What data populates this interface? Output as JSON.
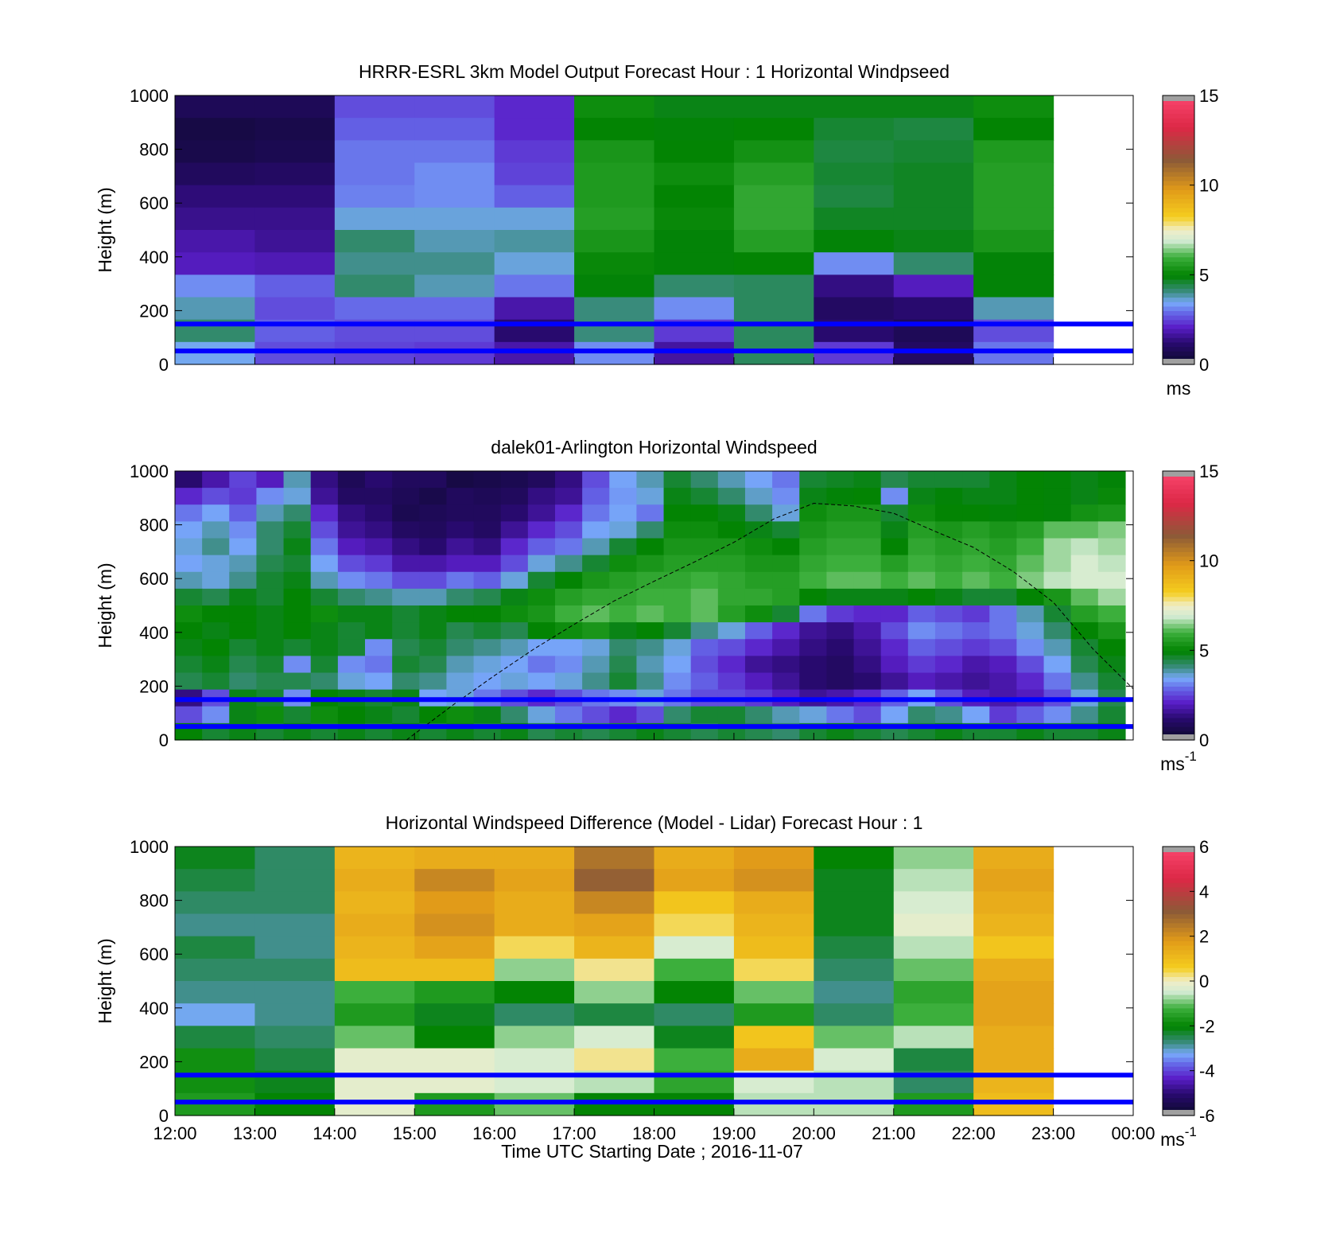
{
  "figure": {
    "xlabel": "Time UTC  Starting Date ; 2016-11-07",
    "x_ticks": [
      "12:00",
      "13:00",
      "14:00",
      "15:00",
      "16:00",
      "17:00",
      "18:00",
      "19:00",
      "20:00",
      "21:00",
      "22:00",
      "23:00",
      "00:00"
    ]
  },
  "colors": {
    "guide_lines": "#0000ff",
    "sun_curve": "#000000",
    "missing": "#ffffff",
    "flag": "#a0a0a0"
  },
  "chart_data": [
    {
      "type": "heatmap",
      "title": "HRRR-ESRL 3km Model Output   Forecast Hour : 1 Horizontal Windpseed",
      "ylabel": "Height (m)",
      "ylim": [
        0,
        1000
      ],
      "y_ticks": [
        "0",
        "200",
        "400",
        "600",
        "800",
        "1000"
      ],
      "x_range_hours": [
        12,
        24
      ],
      "colorbar": {
        "min": 0,
        "max": 15,
        "ticks": [
          "0",
          "5",
          "10",
          "15"
        ],
        "unit": "ms",
        "unit_sup": ""
      },
      "guide_lines_m": [
        150,
        50
      ],
      "values": [
        [
          0.8,
          0.8,
          2.6,
          2.6,
          2.2,
          5.2,
          4.8,
          4.8,
          4.8,
          4.8,
          5.2
        ],
        [
          0.5,
          0.6,
          2.8,
          2.8,
          2.2,
          5.0,
          4.9,
          5.0,
          4.6,
          4.5,
          5.0
        ],
        [
          0.6,
          0.7,
          3.0,
          3.0,
          2.4,
          5.4,
          5.0,
          5.3,
          4.5,
          4.6,
          5.5
        ],
        [
          0.9,
          1.0,
          3.0,
          3.2,
          2.5,
          5.5,
          5.2,
          5.6,
          4.6,
          4.7,
          5.6
        ],
        [
          1.3,
          1.3,
          3.1,
          3.2,
          2.8,
          5.5,
          5.0,
          5.8,
          4.5,
          4.7,
          5.6
        ],
        [
          1.5,
          1.5,
          3.6,
          3.6,
          3.6,
          5.6,
          5.1,
          5.8,
          4.7,
          4.7,
          5.6
        ],
        [
          1.8,
          1.6,
          4.2,
          3.8,
          3.9,
          5.4,
          4.9,
          5.6,
          4.9,
          4.8,
          5.4
        ],
        [
          2.0,
          1.9,
          4.0,
          4.0,
          3.6,
          5.1,
          4.9,
          5.0,
          3.2,
          4.2,
          4.9
        ],
        [
          3.2,
          2.8,
          4.2,
          3.8,
          3.0,
          4.9,
          4.2,
          4.3,
          1.4,
          2.0,
          4.9
        ],
        [
          3.8,
          2.6,
          2.9,
          2.9,
          1.8,
          4.1,
          3.2,
          4.3,
          1.0,
          1.2,
          3.8
        ],
        [
          4.2,
          2.8,
          2.6,
          2.6,
          1.2,
          4.1,
          2.4,
          4.3,
          1.2,
          0.8,
          2.6
        ],
        [
          3.5,
          2.6,
          2.5,
          2.4,
          1.8,
          3.2,
          1.7,
          4.3,
          2.4,
          1.0,
          3.0
        ]
      ]
    },
    {
      "type": "heatmap",
      "title": "dalek01-Arlington  Horizontal Windspeed",
      "ylabel": "Height (m)",
      "ylim": [
        0,
        1000
      ],
      "y_ticks": [
        "0",
        "200",
        "400",
        "600",
        "800",
        "1000"
      ],
      "x_range_hours": [
        12,
        24
      ],
      "colorbar": {
        "min": 0,
        "max": 15,
        "ticks": [
          "0",
          "5",
          "10",
          "15"
        ],
        "unit": "ms",
        "unit_sup": "-1"
      },
      "guide_lines_m": [
        150,
        50
      ],
      "sun_elevation_curve": {
        "hours": [
          14.9,
          15.5,
          16.0,
          16.5,
          17.0,
          17.5,
          18.0,
          18.5,
          19.0,
          19.5,
          20.0,
          20.5,
          21.0,
          21.5,
          22.0,
          22.5,
          23.0,
          23.5,
          24.0
        ],
        "height_m": [
          0,
          134,
          239,
          339,
          430,
          517,
          590,
          661,
          735,
          822,
          880,
          870,
          843,
          778,
          716,
          626,
          512,
          337,
          190
        ]
      },
      "values": [
        [
          1.2,
          1.8,
          2.5,
          2.0,
          3.8,
          1.4,
          0.8,
          1.2,
          0.9,
          0.9,
          0.5,
          0.6,
          0.7,
          0.9,
          1.4,
          2.6,
          3.4,
          3.8,
          4.6,
          4.2,
          3.8,
          3.4,
          3.0,
          4.6,
          4.7,
          4.8,
          4.4,
          4.6,
          4.6,
          4.6,
          4.8,
          5.0,
          4.9,
          4.8,
          4.9
        ],
        [
          2.2,
          2.6,
          2.4,
          3.2,
          3.6,
          1.6,
          1.0,
          1.0,
          0.8,
          0.6,
          0.9,
          0.8,
          0.9,
          1.4,
          1.6,
          2.8,
          3.3,
          3.6,
          4.8,
          4.6,
          4.2,
          3.7,
          3.2,
          4.8,
          4.9,
          5.0,
          3.2,
          4.8,
          4.9,
          4.8,
          4.8,
          5.0,
          4.9,
          4.8,
          5.1
        ],
        [
          3.0,
          3.4,
          2.8,
          3.8,
          4.2,
          2.2,
          1.4,
          1.2,
          0.7,
          0.8,
          0.9,
          0.9,
          1.2,
          1.6,
          2.2,
          3.0,
          3.4,
          3.0,
          5.0,
          5.0,
          4.8,
          4.2,
          3.6,
          5.2,
          5.4,
          5.4,
          4.6,
          5.2,
          5.0,
          5.0,
          4.9,
          5.0,
          4.9,
          5.3,
          5.4
        ],
        [
          3.4,
          3.8,
          3.2,
          4.2,
          4.6,
          2.6,
          1.6,
          1.4,
          1.0,
          0.9,
          1.2,
          1.0,
          1.6,
          2.2,
          2.6,
          3.4,
          3.6,
          4.2,
          5.2,
          5.2,
          5.0,
          4.8,
          4.6,
          5.4,
          5.6,
          5.6,
          4.8,
          5.6,
          5.4,
          5.6,
          5.4,
          5.6,
          6.2,
          6.2,
          6.4
        ],
        [
          3.6,
          4.0,
          3.4,
          4.2,
          4.8,
          3.0,
          2.0,
          1.8,
          1.4,
          1.2,
          1.6,
          1.4,
          2.2,
          2.8,
          3.0,
          3.8,
          4.6,
          5.0,
          5.4,
          5.4,
          5.4,
          5.2,
          5.0,
          5.6,
          5.8,
          5.8,
          5.0,
          5.8,
          5.6,
          5.8,
          5.6,
          6.0,
          6.6,
          6.8,
          6.6
        ],
        [
          3.4,
          3.6,
          3.8,
          4.4,
          4.6,
          3.4,
          2.6,
          2.4,
          1.8,
          1.8,
          2.0,
          2.0,
          2.6,
          3.6,
          4.0,
          4.6,
          5.2,
          5.4,
          5.6,
          5.6,
          5.6,
          5.4,
          5.4,
          5.8,
          6.0,
          6.0,
          5.6,
          6.0,
          5.8,
          6.0,
          5.8,
          6.2,
          6.6,
          7.0,
          6.8
        ],
        [
          3.8,
          3.6,
          4.0,
          4.6,
          4.8,
          3.8,
          3.2,
          3.0,
          2.6,
          2.6,
          3.0,
          2.8,
          3.6,
          4.6,
          5.0,
          5.4,
          5.6,
          5.8,
          5.8,
          6.0,
          5.8,
          5.6,
          5.6,
          6.0,
          6.2,
          6.2,
          6.0,
          6.2,
          6.0,
          6.2,
          6.0,
          6.4,
          6.8,
          7.0,
          7.0
        ],
        [
          4.6,
          4.4,
          4.8,
          4.6,
          5.0,
          4.6,
          4.2,
          4.0,
          3.8,
          3.8,
          4.2,
          4.4,
          4.8,
          5.2,
          5.6,
          5.8,
          5.8,
          6.0,
          6.0,
          6.2,
          5.8,
          5.8,
          5.6,
          5.0,
          4.8,
          4.8,
          4.8,
          5.0,
          4.8,
          4.6,
          4.6,
          5.0,
          5.4,
          6.2,
          6.6
        ],
        [
          5.2,
          5.0,
          5.0,
          4.8,
          5.0,
          5.2,
          4.8,
          4.8,
          4.6,
          4.8,
          5.0,
          5.0,
          5.2,
          5.4,
          6.0,
          6.2,
          6.0,
          6.2,
          6.0,
          6.2,
          5.6,
          5.2,
          4.6,
          3.0,
          2.4,
          2.2,
          2.2,
          2.8,
          2.6,
          2.4,
          3.0,
          3.8,
          4.6,
          5.6,
          6.0
        ],
        [
          5.0,
          4.8,
          5.0,
          4.8,
          5.0,
          4.8,
          4.6,
          4.8,
          4.6,
          4.8,
          4.4,
          4.6,
          4.4,
          5.0,
          5.2,
          5.4,
          4.8,
          5.0,
          4.6,
          4.0,
          3.6,
          2.8,
          2.2,
          1.6,
          1.4,
          1.8,
          2.6,
          3.2,
          3.0,
          2.8,
          3.0,
          3.6,
          4.2,
          5.0,
          5.4
        ],
        [
          4.8,
          5.0,
          4.6,
          4.8,
          4.6,
          4.8,
          4.6,
          3.2,
          4.4,
          4.6,
          4.2,
          4.0,
          3.8,
          3.4,
          3.4,
          3.6,
          4.2,
          4.0,
          3.6,
          2.8,
          2.6,
          2.2,
          1.8,
          1.4,
          1.2,
          1.6,
          2.2,
          2.8,
          2.6,
          2.4,
          2.6,
          3.2,
          3.8,
          4.6,
          5.0
        ],
        [
          4.6,
          4.8,
          4.4,
          4.6,
          3.2,
          4.6,
          3.2,
          3.0,
          4.6,
          4.4,
          3.8,
          3.6,
          3.4,
          3.0,
          3.2,
          3.8,
          4.4,
          3.8,
          3.4,
          2.6,
          2.2,
          1.6,
          1.4,
          1.2,
          1.0,
          1.4,
          2.0,
          2.4,
          2.2,
          1.8,
          2.0,
          2.6,
          3.4,
          4.4,
          4.8
        ],
        [
          4.4,
          4.6,
          4.2,
          4.4,
          4.4,
          4.2,
          3.6,
          3.4,
          4.2,
          4.0,
          3.6,
          3.4,
          3.6,
          3.4,
          3.6,
          4.0,
          4.6,
          4.0,
          3.2,
          2.8,
          2.4,
          2.0,
          1.6,
          1.2,
          1.0,
          1.2,
          1.6,
          2.0,
          1.8,
          1.6,
          1.8,
          2.2,
          3.0,
          4.0,
          4.6
        ],
        [
          1.4,
          2.6,
          4.8,
          4.6,
          3.2,
          5.0,
          4.8,
          4.6,
          4.8,
          3.4,
          3.6,
          3.0,
          2.6,
          2.2,
          2.6,
          3.0,
          3.2,
          3.6,
          3.0,
          2.6,
          2.6,
          2.4,
          2.0,
          1.6,
          1.8,
          2.2,
          2.8,
          3.4,
          2.6,
          2.0,
          1.8,
          2.0,
          2.6,
          3.6,
          4.4
        ],
        [
          2.6,
          3.2,
          4.8,
          5.2,
          4.6,
          5.2,
          5.0,
          4.8,
          4.6,
          5.0,
          5.2,
          4.8,
          4.2,
          3.6,
          3.0,
          2.6,
          2.2,
          2.6,
          4.2,
          4.6,
          4.6,
          4.2,
          3.8,
          3.6,
          3.0,
          2.6,
          3.4,
          4.2,
          4.0,
          3.4,
          2.4,
          2.8,
          3.2,
          4.0,
          4.6
        ],
        [
          5.0,
          4.6,
          4.8,
          4.6,
          4.8,
          4.6,
          4.8,
          4.6,
          4.8,
          4.6,
          4.8,
          4.6,
          4.8,
          4.4,
          4.6,
          4.4,
          4.6,
          4.8,
          4.6,
          4.4,
          4.6,
          4.4,
          4.2,
          4.6,
          4.8,
          4.6,
          4.4,
          4.6,
          4.8,
          4.6,
          4.6,
          4.8,
          4.6,
          4.6,
          4.8
        ]
      ]
    },
    {
      "type": "heatmap",
      "title": "Horizontal Windspeed Difference (Model - Lidar) Forecast Hour : 1",
      "ylabel": "Height (m)",
      "ylim": [
        0,
        1000
      ],
      "y_ticks": [
        "0",
        "200",
        "400",
        "600",
        "800",
        "1000"
      ],
      "x_range_hours": [
        12,
        24
      ],
      "colorbar": {
        "min": -6,
        "max": 6,
        "ticks": [
          "-6",
          "-4",
          "-2",
          "0",
          "2",
          "4",
          "6"
        ],
        "unit": "ms",
        "unit_sup": "-1"
      },
      "guide_lines_m": [
        150,
        50
      ],
      "values": [
        [
          -2.2,
          -2.6,
          1.2,
          1.4,
          1.4,
          2.6,
          1.4,
          1.8,
          -2.0,
          -0.8,
          1.4
        ],
        [
          -2.4,
          -2.6,
          1.4,
          2.2,
          1.6,
          3.0,
          1.6,
          2.0,
          -2.2,
          -0.6,
          1.6
        ],
        [
          -2.6,
          -2.6,
          1.2,
          1.8,
          1.4,
          2.2,
          0.8,
          1.4,
          -2.2,
          -0.4,
          1.4
        ],
        [
          -2.8,
          -2.8,
          1.4,
          2.0,
          1.4,
          1.6,
          0.4,
          1.2,
          -2.2,
          -0.2,
          1.2
        ],
        [
          -2.4,
          -2.8,
          1.2,
          1.6,
          0.4,
          1.2,
          -0.4,
          1.0,
          -2.4,
          -0.6,
          0.8
        ],
        [
          -2.6,
          -2.6,
          1.0,
          1.0,
          -0.8,
          0.2,
          -1.2,
          0.4,
          -2.6,
          -1.0,
          1.4
        ],
        [
          -2.8,
          -2.8,
          -1.2,
          -1.6,
          -2.0,
          -0.8,
          -2.0,
          -1.0,
          -2.8,
          -1.4,
          1.6
        ],
        [
          -3.2,
          -2.8,
          -1.6,
          -2.2,
          -2.6,
          -2.4,
          -2.6,
          -1.6,
          -2.6,
          -1.2,
          1.6
        ],
        [
          -2.4,
          -2.6,
          -1.0,
          -2.0,
          -0.8,
          -0.4,
          -2.2,
          0.8,
          -1.0,
          -0.6,
          1.4
        ],
        [
          -1.8,
          -2.4,
          -0.2,
          -0.2,
          -0.4,
          0.2,
          -1.2,
          1.4,
          -0.4,
          -2.4,
          1.4
        ],
        [
          -1.8,
          -2.2,
          -0.2,
          -0.2,
          -0.4,
          -0.6,
          -1.4,
          -0.4,
          -0.6,
          -2.6,
          1.2
        ],
        [
          -1.6,
          -2.0,
          -0.2,
          -1.6,
          -1.0,
          -2.0,
          -2.0,
          -0.6,
          -0.6,
          -1.6,
          1.0
        ]
      ]
    }
  ]
}
